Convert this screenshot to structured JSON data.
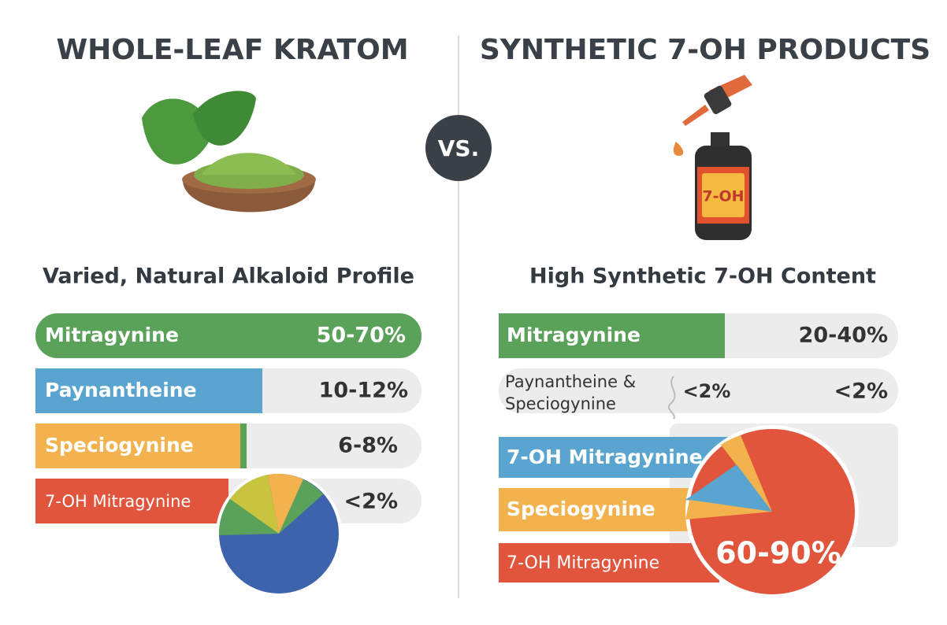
{
  "left": {
    "title": "WHOLE-LEAF KRATOM",
    "subtitle": "Varied, Natural Alkaloid Profile",
    "rows": [
      {
        "label": "Mitragynine",
        "value": "50-70%"
      },
      {
        "label": "Paynantheine",
        "value": "10-12%"
      },
      {
        "label": "Speciogynine",
        "value": "6-8%"
      },
      {
        "label": "7-OH Mitragynine",
        "value": "<2%"
      }
    ]
  },
  "vs": "VS.",
  "right": {
    "title": "SYNTHETIC 7-OH PRODUCTS",
    "bottle_label": "7-OH",
    "subtitle": "High Synthetic 7-OH Content",
    "rows": [
      {
        "label": "Mitragynine",
        "value": "20-40%"
      },
      {
        "label": [
          "Paynantheine &",
          "Speciogynine"
        ],
        "inner_value": "<2%",
        "value": "<2%"
      },
      {
        "label": "7-OH Mitragynine"
      },
      {
        "label": "Speciogynine"
      },
      {
        "label": "7-OH Mitragynine"
      }
    ],
    "pie_label": "60-90%"
  }
}
